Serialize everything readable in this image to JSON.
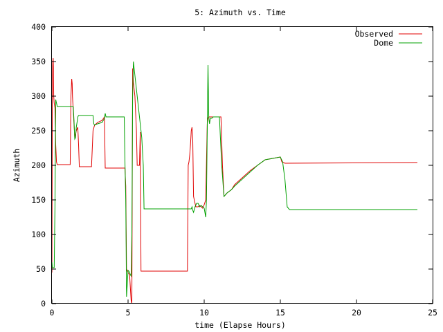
{
  "chart_data": {
    "type": "line",
    "title": "5: Azimuth vs. Time",
    "xlabel": "time (Elapse Hours)",
    "ylabel": "Azimuth",
    "xlim": [
      0,
      25
    ],
    "ylim": [
      0,
      400
    ],
    "xticks": [
      "0",
      "5",
      "10",
      "15",
      "20",
      "25"
    ],
    "yticks": [
      "0",
      "50",
      "100",
      "150",
      "200",
      "250",
      "300",
      "350",
      "400"
    ],
    "grid": false,
    "legend_position": "top-right",
    "series": [
      {
        "name": "Observed",
        "color": "#e00000",
        "x": [
          0,
          0.03,
          0.06,
          0.08,
          0.1,
          0.12,
          0.15,
          0.2,
          0.25,
          0.3,
          0.35,
          0.4,
          0.5,
          0.6,
          0.8,
          1.2,
          1.25,
          1.3,
          1.33,
          1.35,
          1.4,
          1.45,
          1.5,
          1.55,
          1.6,
          1.7,
          1.75,
          1.8,
          1.85,
          1.9,
          2.6,
          2.7,
          2.8,
          3.0,
          3.3,
          3.45,
          3.5,
          3.55,
          3.6,
          4.8,
          4.82,
          4.85,
          4.9,
          5.0,
          5.1,
          5.2,
          5.25,
          5.3,
          5.35,
          5.45,
          5.55,
          5.6,
          5.65,
          5.75,
          5.8,
          5.85,
          5.95,
          6.0,
          6.05,
          6.1,
          8.9,
          8.95,
          9.0,
          9.05,
          9.1,
          9.15,
          9.2,
          9.25,
          9.3,
          9.35,
          9.4,
          9.45,
          9.6,
          9.7,
          9.8,
          9.9,
          10.0,
          10.1,
          10.2,
          10.25,
          10.3,
          10.4,
          10.5,
          11.0,
          11.1,
          11.2,
          11.3,
          11.5,
          11.8,
          12.0,
          12.5,
          13.0,
          13.5,
          14.0,
          14.5,
          15.0,
          15.1,
          15.2,
          15.3,
          24.0
        ],
        "y": [
          45,
          330,
          350,
          355,
          340,
          300,
          290,
          283,
          230,
          205,
          201,
          201,
          201,
          201,
          201,
          201,
          300,
          325,
          318,
          300,
          280,
          260,
          240,
          245,
          250,
          255,
          230,
          198,
          198,
          198,
          198,
          250,
          258,
          262,
          265,
          270,
          196,
          196,
          196,
          196,
          185,
          170,
          50,
          45,
          42,
          5,
          0,
          340,
          320,
          300,
          250,
          200,
          200,
          200,
          248,
          47,
          47,
          47,
          47,
          47,
          47,
          200,
          205,
          215,
          230,
          250,
          255,
          235,
          155,
          150,
          145,
          140,
          140,
          142,
          140,
          138,
          143,
          150,
          260,
          268,
          270,
          270,
          270,
          270,
          270,
          200,
          155,
          160,
          165,
          172,
          182,
          192,
          200,
          208,
          210,
          212,
          205,
          204,
          203,
          204
        ]
      },
      {
        "name": "Dome",
        "color": "#00a000",
        "x": [
          0,
          0.03,
          0.06,
          0.09,
          0.12,
          0.15,
          0.2,
          0.25,
          0.3,
          0.35,
          0.4,
          0.5,
          0.8,
          1.1,
          1.3,
          1.35,
          1.4,
          1.45,
          1.5,
          1.55,
          1.6,
          1.65,
          1.7,
          1.75,
          1.8,
          1.85,
          2.7,
          2.75,
          2.8,
          3.0,
          3.3,
          3.45,
          3.5,
          3.55,
          4.7,
          4.75,
          4.8,
          4.85,
          4.9,
          5.0,
          5.05,
          5.1,
          5.15,
          5.2,
          5.25,
          5.3,
          5.35,
          5.4,
          5.5,
          5.6,
          5.7,
          5.8,
          5.9,
          6.0,
          6.05,
          6.1,
          6.2,
          9.1,
          9.15,
          9.2,
          9.25,
          9.3,
          9.4,
          9.5,
          9.6,
          9.7,
          9.8,
          9.9,
          10.0,
          10.1,
          10.15,
          10.2,
          10.25,
          10.3,
          10.35,
          10.4,
          10.5,
          10.6,
          11.0,
          11.15,
          11.3,
          11.5,
          11.8,
          12.0,
          12.5,
          13.0,
          13.5,
          14.0,
          14.5,
          15.0,
          15.15,
          15.3,
          15.45,
          15.6,
          24.0
        ],
        "y": [
          60,
          52,
          52,
          52,
          52,
          52,
          140,
          295,
          290,
          285,
          285,
          285,
          285,
          285,
          285,
          285,
          285,
          265,
          238,
          240,
          255,
          262,
          270,
          272,
          272,
          272,
          272,
          260,
          258,
          260,
          262,
          268,
          275,
          270,
          270,
          270,
          200,
          150,
          10,
          48,
          47,
          45,
          42,
          40,
          100,
          300,
          350,
          340,
          320,
          300,
          280,
          260,
          240,
          200,
          137,
          137,
          137,
          137,
          137,
          140,
          135,
          132,
          140,
          145,
          145,
          140,
          142,
          140,
          138,
          125,
          150,
          250,
          345,
          270,
          260,
          268,
          268,
          270,
          270,
          200,
          155,
          160,
          165,
          170,
          180,
          190,
          200,
          208,
          210,
          212,
          205,
          180,
          140,
          136,
          136
        ]
      }
    ]
  }
}
